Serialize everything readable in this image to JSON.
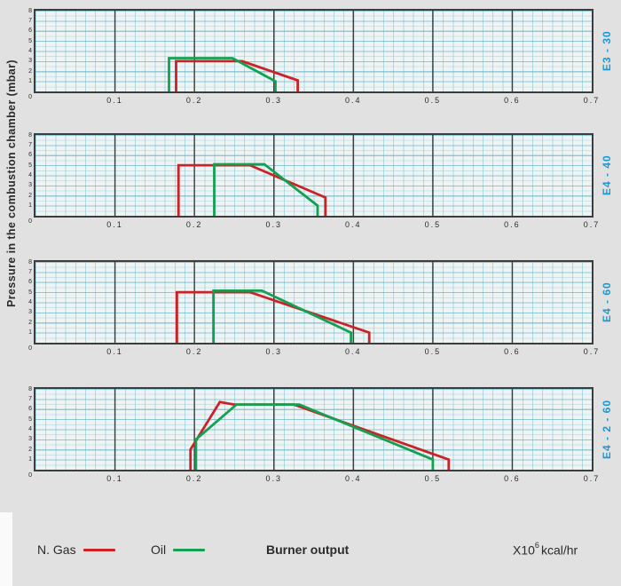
{
  "y_axis_label": "Pressure in the combustion chamber (mbar)",
  "axes": {
    "xlim": [
      0,
      0.7
    ],
    "ylim": [
      0,
      8
    ],
    "x_tick_values": [
      0.1,
      0.2,
      0.3,
      0.4,
      0.5,
      0.6,
      0.7
    ],
    "x_tick_labels": [
      "0.1",
      "0.2",
      "0.3",
      "0.4",
      "0.5",
      "0.6",
      "0.7"
    ],
    "x_major_gridlines": [
      0.1,
      0.2,
      0.3,
      0.4,
      0.5,
      0.6
    ],
    "y_tick_values": [
      1,
      2,
      3,
      4,
      5,
      6,
      7,
      8
    ],
    "y_tick_labels": [
      "1",
      "2",
      "3",
      "4",
      "5",
      "6",
      "7",
      "8"
    ],
    "origin_label": "0",
    "grid": "fine graph paper, cyan minor lines, black major verticals every 0.1"
  },
  "colors": {
    "gas": "#cb2127",
    "oil": "#14a050",
    "panel_tag": "#1a98d5",
    "grid_major": "#3d3d3d",
    "plot_bg": "#eef3f3",
    "page_bg": "#e1e1e1",
    "text": "#2b2b2b"
  },
  "legend": {
    "gas_label": "N. Gas",
    "oil_label": "Oil",
    "burner_output_label": "Burner output",
    "x_unit": {
      "base": "X10",
      "exp": "6",
      "suffix": "kcal/hr"
    }
  },
  "chart_data": [
    {
      "type": "line",
      "panel_label": "E3 - 30",
      "xlim": [
        0,
        0.7
      ],
      "ylim": [
        0,
        8
      ],
      "legend_position": "bottom",
      "series": [
        {
          "name": "N. Gas",
          "color": "#cb2127",
          "points": [
            [
              0.177,
              0
            ],
            [
              0.177,
              3.0
            ],
            [
              0.26,
              3.0
            ],
            [
              0.33,
              1.1
            ],
            [
              0.33,
              0
            ]
          ]
        },
        {
          "name": "Oil",
          "color": "#14a050",
          "points": [
            [
              0.168,
              0
            ],
            [
              0.168,
              3.3
            ],
            [
              0.248,
              3.3
            ],
            [
              0.302,
              1.0
            ],
            [
              0.302,
              0
            ]
          ]
        }
      ]
    },
    {
      "type": "line",
      "panel_label": "E4 - 40",
      "xlim": [
        0,
        0.7
      ],
      "ylim": [
        0,
        8
      ],
      "legend_position": "bottom",
      "series": [
        {
          "name": "N. Gas",
          "color": "#cb2127",
          "points": [
            [
              0.18,
              0
            ],
            [
              0.18,
              5.0
            ],
            [
              0.27,
              5.0
            ],
            [
              0.365,
              1.8
            ],
            [
              0.365,
              0
            ]
          ]
        },
        {
          "name": "Oil",
          "color": "#14a050",
          "points": [
            [
              0.225,
              0
            ],
            [
              0.225,
              5.1
            ],
            [
              0.288,
              5.1
            ],
            [
              0.355,
              1.0
            ],
            [
              0.355,
              0
            ]
          ]
        }
      ]
    },
    {
      "type": "line",
      "panel_label": "E4 - 60",
      "xlim": [
        0,
        0.7
      ],
      "ylim": [
        0,
        8
      ],
      "legend_position": "bottom",
      "series": [
        {
          "name": "N. Gas",
          "color": "#cb2127",
          "points": [
            [
              0.178,
              0
            ],
            [
              0.178,
              5.0
            ],
            [
              0.27,
              5.0
            ],
            [
              0.42,
              1.0
            ],
            [
              0.42,
              0
            ]
          ]
        },
        {
          "name": "Oil",
          "color": "#14a050",
          "points": [
            [
              0.224,
              0
            ],
            [
              0.224,
              5.15
            ],
            [
              0.285,
              5.15
            ],
            [
              0.397,
              1.0
            ],
            [
              0.397,
              0
            ]
          ]
        }
      ]
    },
    {
      "type": "line",
      "panel_label": "E4 - 2 - 60",
      "xlim": [
        0,
        0.7
      ],
      "ylim": [
        0,
        8
      ],
      "legend_position": "bottom",
      "series": [
        {
          "name": "N. Gas",
          "color": "#cb2127",
          "points": [
            [
              0.195,
              0
            ],
            [
              0.195,
              2.0
            ],
            [
              0.232,
              6.7
            ],
            [
              0.25,
              6.45
            ],
            [
              0.325,
              6.45
            ],
            [
              0.52,
              1.0
            ],
            [
              0.52,
              0
            ]
          ]
        },
        {
          "name": "Oil",
          "color": "#14a050",
          "points": [
            [
              0.202,
              0
            ],
            [
              0.202,
              3.0
            ],
            [
              0.253,
              6.45
            ],
            [
              0.332,
              6.45
            ],
            [
              0.5,
              1.0
            ],
            [
              0.5,
              0
            ]
          ]
        }
      ]
    }
  ]
}
